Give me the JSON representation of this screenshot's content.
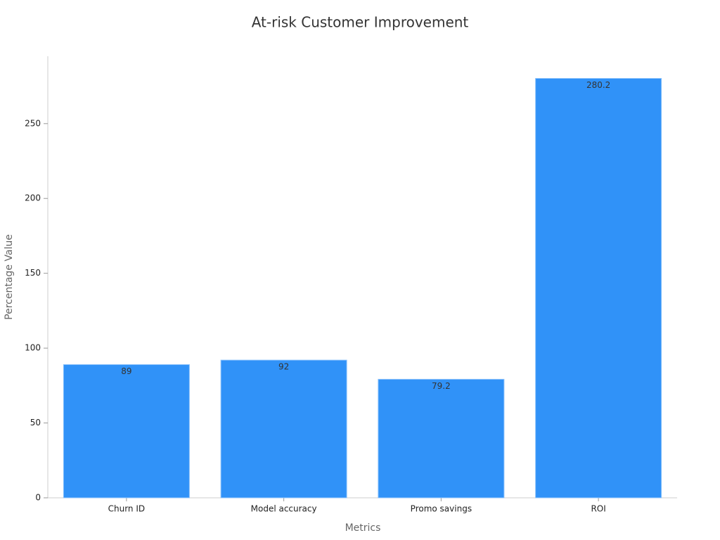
{
  "chart_data": {
    "type": "bar",
    "title": "At-risk Customer Improvement",
    "x_label": "Metrics",
    "y_label": "Percentage Value",
    "categories": [
      "Churn ID",
      "Model accuracy",
      "Promo savings",
      "ROI"
    ],
    "values": [
      89,
      92,
      79.2,
      280.2
    ],
    "color": "#3092f8",
    "ylim": [
      0,
      295
    ],
    "yticks": [
      0,
      50,
      100,
      150,
      200,
      250
    ],
    "grid": false
  }
}
